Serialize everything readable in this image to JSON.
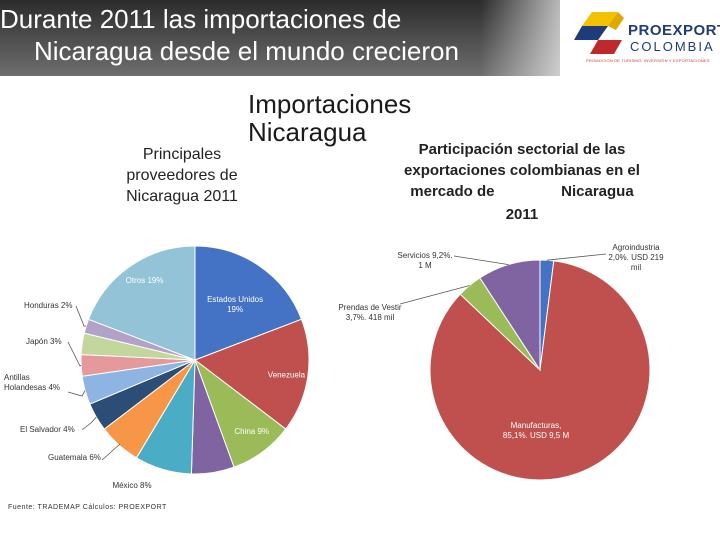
{
  "header": {
    "title_line1": "Durante 2011 las importaciones de",
    "title_line2": "Nicaragua desde el mundo crecieron"
  },
  "logo": {
    "name": "PROEXPORT",
    "sub": "COLOMBIA",
    "tagline": "PROMOCIÓN DE TURISMO, INVERSIÓN Y EXPORTACIONES"
  },
  "main_heading": {
    "line1": "Importaciones",
    "line2": "Nicaragua"
  },
  "source_note": "Fuente: TRADEMAP  Cálculos: PROEXPORT",
  "chart_data": [
    {
      "type": "pie",
      "title": "Principales proveedores de Nicaragua 2011",
      "title_lines": [
        "Principales",
        "proveedores de",
        "Nicaragua  2011"
      ],
      "slices": [
        {
          "label": "Estados Unidos 19%",
          "value": 19,
          "color": "#4472c4"
        },
        {
          "label": "Venezuela 16%",
          "value": 16,
          "color": "#c0504d"
        },
        {
          "label": "China 9%",
          "value": 9,
          "color": "#9bbb59"
        },
        {
          "label": "",
          "value": 6,
          "color": "#8064a2"
        },
        {
          "label": "México 8%",
          "value": 8,
          "color": "#4bacc6"
        },
        {
          "label": "Guatemala 6%",
          "value": 6,
          "color": "#f79646"
        },
        {
          "label": "El Salvador 4%",
          "value": 4,
          "color": "#2c4d75"
        },
        {
          "label": "Antillas Holandesas 4%",
          "value": 4,
          "color": "#8eb4e3"
        },
        {
          "label": "Japón 3%",
          "value": 3,
          "color": "#e6999a"
        },
        {
          "label": "",
          "value": 3,
          "color": "#c3d69b"
        },
        {
          "label": "Honduras 2%",
          "value": 2,
          "color": "#b3a2c7"
        },
        {
          "label": "Otros  19%",
          "value": 19,
          "color": "#93c3d6"
        }
      ]
    },
    {
      "type": "pie",
      "title": "Participación sectorial de las exportaciones colombianas en el mercado de Nicaragua 2011",
      "title_lines": [
        "Participación sectorial de las",
        "exportaciones colombianas en el",
        "mercado de                Nicaragua",
        "2011"
      ],
      "slices": [
        {
          "label_lines": [
            "Agroindustria",
            "2,0%. USD 219",
            "mil"
          ],
          "value": 2.0,
          "color": "#4472c4"
        },
        {
          "label_lines": [
            "Manufacturas,",
            "85,1%. USD 9,5 M"
          ],
          "value": 85.1,
          "color": "#c0504d"
        },
        {
          "label_lines": [
            "Prendas de Vestir",
            "3,7%. 418 mil"
          ],
          "value": 3.7,
          "color": "#9bbb59"
        },
        {
          "label_lines": [
            "Servicios 9,2%.",
            "1 M"
          ],
          "value": 9.2,
          "color": "#8064a2"
        }
      ]
    }
  ]
}
